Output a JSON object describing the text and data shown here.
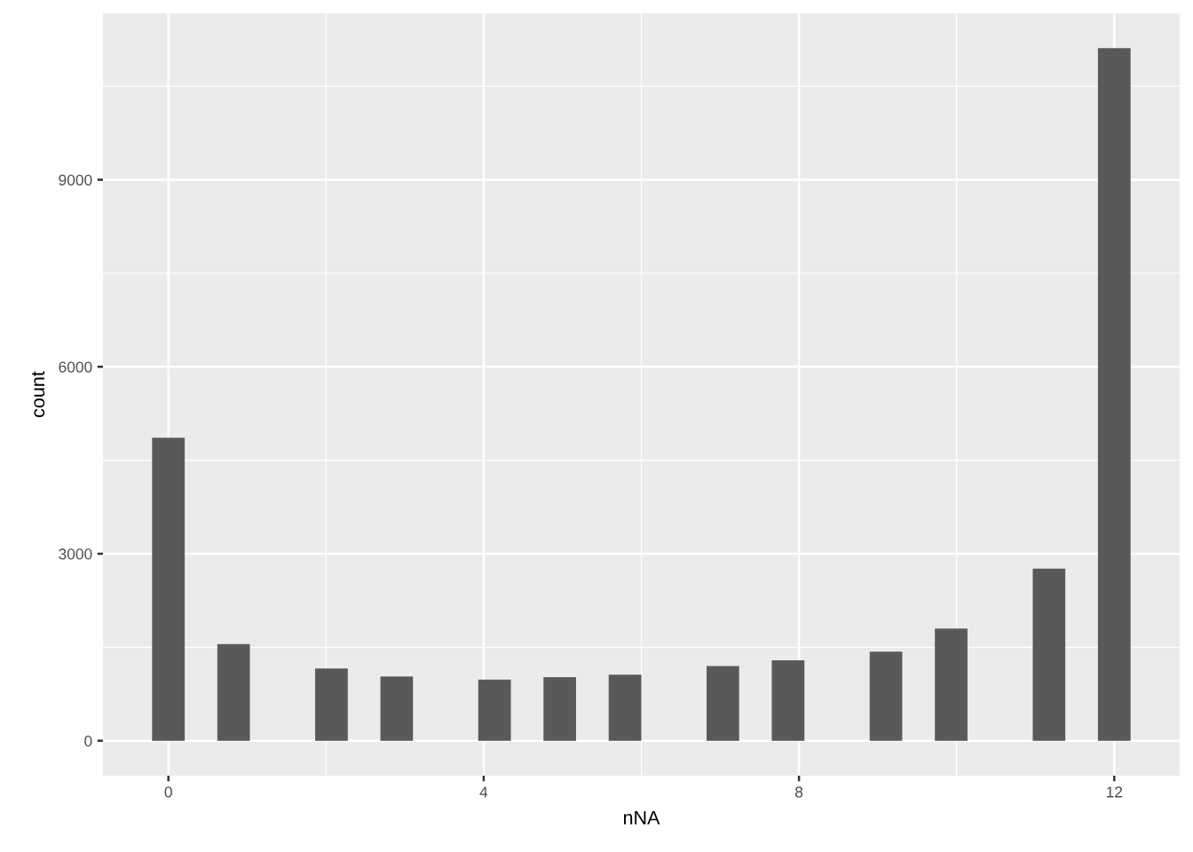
{
  "chart_data": {
    "type": "histogram",
    "xlabel": "nNA",
    "ylabel": "count",
    "bins": [
      -0.207,
      0.207,
      0.621,
      1.034,
      1.448,
      1.862,
      2.276,
      2.69,
      3.103,
      3.517,
      3.931,
      4.345,
      4.759,
      5.172,
      5.586,
      6.0,
      6.414,
      6.828,
      7.241,
      7.655,
      8.069,
      8.483,
      8.897,
      9.31,
      9.724,
      10.138,
      10.552,
      10.966,
      11.379,
      11.793,
      12.207
    ],
    "values": [
      4860,
      0,
      1550,
      0,
      0,
      1160,
      0,
      1030,
      0,
      0,
      980,
      0,
      1020,
      0,
      1060,
      0,
      0,
      1200,
      0,
      1290,
      0,
      0,
      1430,
      0,
      1800,
      0,
      0,
      2760,
      0,
      11110
    ],
    "color": "#595959",
    "xlim": [
      -0.83,
      12.83
    ],
    "xticks": [
      0,
      4,
      8,
      12
    ],
    "ylim": [
      -560,
      11670
    ],
    "yticks": [
      0,
      3000,
      6000,
      9000
    ],
    "grid": true
  }
}
